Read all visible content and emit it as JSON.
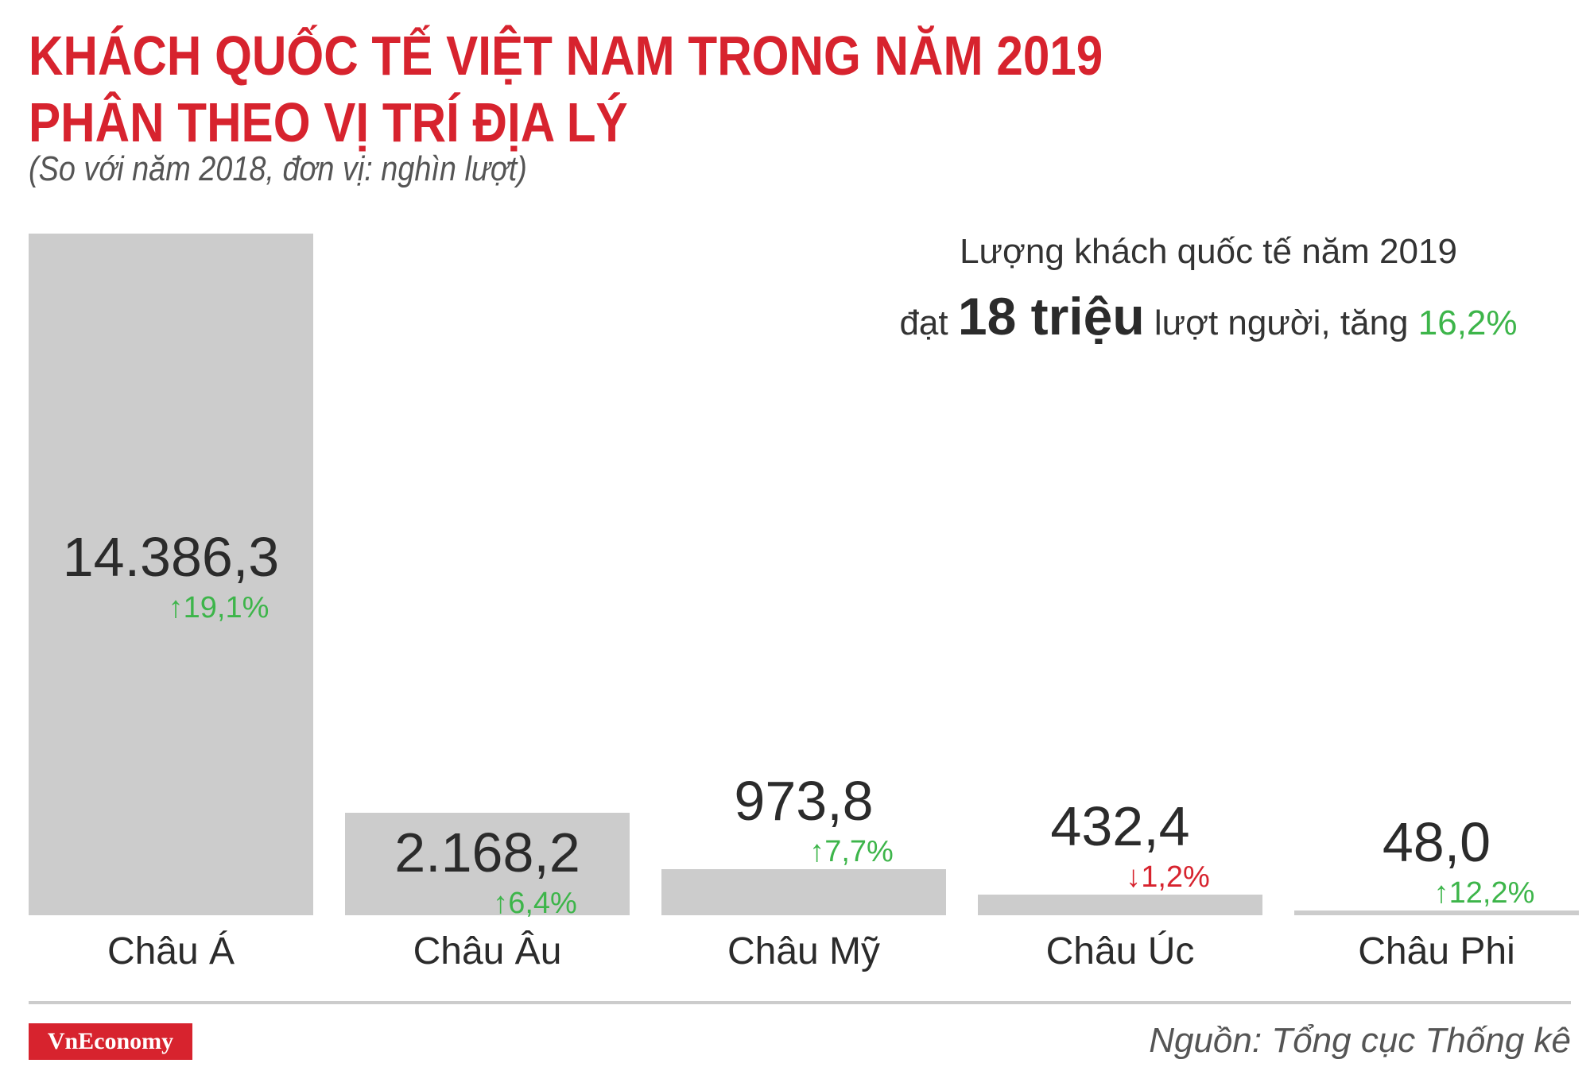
{
  "header": {
    "title_line1": "KHÁCH QUỐC TẾ VIỆT NAM TRONG NĂM 2019",
    "title_line2": "PHÂN THEO VỊ TRÍ ĐỊA LÝ",
    "subtitle": "(So với năm 2018, đơn vị: nghìn lượt)"
  },
  "summary": {
    "line1": "Lượng khách quốc tế năm 2019",
    "line2_prefix": "đạt",
    "line2_highlight": "18 triệu",
    "line2_middle": "lượt người, tăng",
    "line2_growth": "16,2%"
  },
  "chart_data": {
    "type": "bar",
    "categories": [
      "Châu Á",
      "Châu Âu",
      "Châu Mỹ",
      "Châu Úc",
      "Châu Phi"
    ],
    "values": [
      14386.3,
      2168.2,
      973.8,
      432.4,
      48.0
    ],
    "value_labels": [
      "14.386,3",
      "2.168,2",
      "973,8",
      "432,4",
      "48,0"
    ],
    "changes": [
      {
        "text": "19,1%",
        "direction": "up"
      },
      {
        "text": "6,4%",
        "direction": "up"
      },
      {
        "text": "7,7%",
        "direction": "up"
      },
      {
        "text": "1,2%",
        "direction": "down"
      },
      {
        "text": "12,2%",
        "direction": "up"
      }
    ],
    "bar_color": "#cccccc",
    "up_color": "#3db54a",
    "down_color": "#d7232e",
    "grid": false,
    "legend": "none"
  },
  "footer": {
    "logo": "VnEconomy",
    "source": "Nguồn: Tổng cục Thống kê"
  }
}
